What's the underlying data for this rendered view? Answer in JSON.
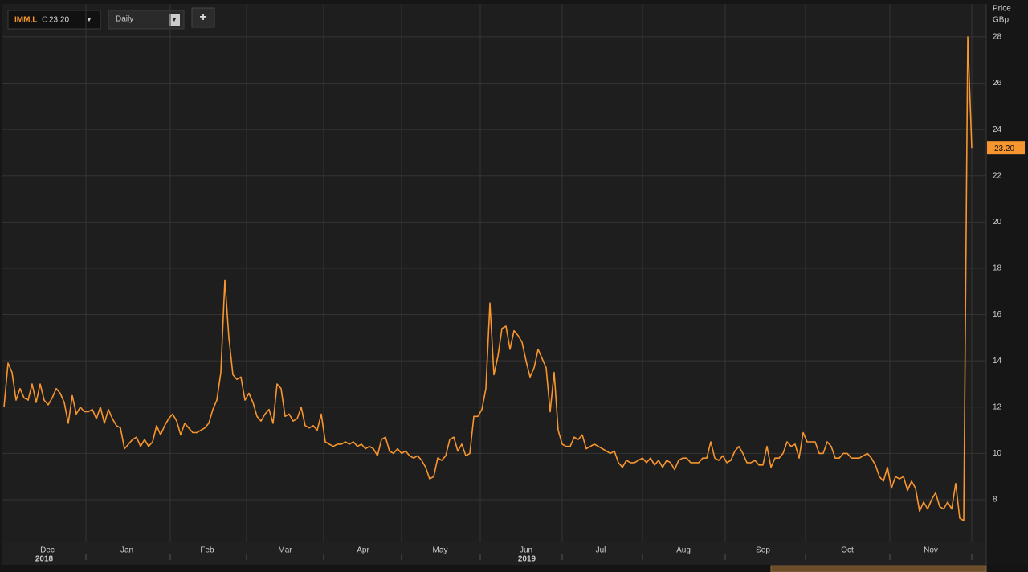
{
  "header": {
    "symbol": "IMM.L",
    "close_prefix": "C",
    "close": "23.20",
    "interval": "Daily",
    "add": "+"
  },
  "chart_data": {
    "type": "line",
    "y_axis_title": [
      "Price",
      "GBp"
    ],
    "series": [
      {
        "name": "IMM.L",
        "color": "#f7952e",
        "values": [
          12.0,
          13.9,
          13.5,
          12.3,
          12.8,
          12.4,
          12.3,
          13.0,
          12.2,
          13.0,
          12.3,
          12.1,
          12.4,
          12.8,
          12.6,
          12.2,
          11.3,
          12.5,
          11.7,
          12.0,
          11.8,
          11.8,
          11.9,
          11.5,
          12.0,
          11.3,
          11.9,
          11.5,
          11.2,
          11.1,
          10.2,
          10.4,
          10.6,
          10.7,
          10.3,
          10.6,
          10.3,
          10.5,
          11.2,
          10.8,
          11.2,
          11.5,
          11.7,
          11.4,
          10.8,
          11.3,
          11.1,
          10.9,
          10.9,
          11.0,
          11.1,
          11.3,
          11.9,
          12.3,
          13.5,
          17.5,
          15.0,
          13.4,
          13.2,
          13.3,
          12.3,
          12.6,
          12.2,
          11.6,
          11.4,
          11.7,
          11.9,
          11.3,
          13.0,
          12.8,
          11.6,
          11.7,
          11.4,
          11.5,
          12.0,
          11.2,
          11.1,
          11.2,
          11.0,
          11.7,
          10.5,
          10.4,
          10.3,
          10.4,
          10.4,
          10.5,
          10.4,
          10.5,
          10.3,
          10.4,
          10.2,
          10.3,
          10.2,
          9.9,
          10.6,
          10.7,
          10.1,
          10.0,
          10.2,
          10.0,
          10.1,
          9.9,
          9.8,
          9.9,
          9.7,
          9.4,
          8.9,
          9.0,
          9.8,
          9.7,
          9.9,
          10.6,
          10.7,
          10.1,
          10.4,
          9.9,
          10.0,
          11.6,
          11.6,
          11.9,
          12.8,
          16.5,
          13.4,
          14.2,
          15.4,
          15.5,
          14.5,
          15.3,
          15.1,
          14.8,
          14.0,
          13.3,
          13.7,
          14.5,
          14.1,
          13.7,
          11.8,
          13.5,
          11.0,
          10.4,
          10.3,
          10.3,
          10.7,
          10.6,
          10.8,
          10.2,
          10.3,
          10.4,
          10.3,
          10.2,
          10.1,
          10.0,
          10.1,
          9.6,
          9.4,
          9.7,
          9.6,
          9.6,
          9.7,
          9.8,
          9.6,
          9.8,
          9.5,
          9.7,
          9.4,
          9.7,
          9.6,
          9.3,
          9.7,
          9.8,
          9.8,
          9.6,
          9.6,
          9.6,
          9.8,
          9.8,
          10.5,
          9.8,
          9.7,
          9.9,
          9.6,
          9.7,
          10.1,
          10.3,
          10.0,
          9.6,
          9.6,
          9.7,
          9.5,
          9.5,
          10.3,
          9.4,
          9.8,
          9.8,
          10.0,
          10.5,
          10.3,
          10.4,
          9.8,
          10.9,
          10.5,
          10.5,
          10.5,
          10.0,
          10.0,
          10.5,
          10.3,
          9.8,
          9.8,
          10.0,
          10.0,
          9.8,
          9.8,
          9.8,
          9.9,
          10.0,
          9.8,
          9.5,
          9.0,
          8.8,
          9.4,
          8.5,
          9.0,
          8.9,
          9.0,
          8.4,
          8.8,
          8.5,
          7.5,
          7.9,
          7.6,
          8.0,
          8.3,
          7.7,
          7.6,
          7.9,
          7.6,
          8.7,
          7.2,
          7.1,
          28.0,
          23.2
        ]
      }
    ],
    "last_label": {
      "value": 23.2,
      "label": "23.20"
    },
    "xlim": [
      -0.4,
      244.6
    ],
    "xticks": [
      {
        "value": 10.8,
        "label": "Dec"
      },
      {
        "value": 30.6,
        "label": "Jan"
      },
      {
        "value": 50.6,
        "label": "Feb"
      },
      {
        "value": 70,
        "label": "Mar"
      },
      {
        "value": 89.4,
        "label": "Apr"
      },
      {
        "value": 108.6,
        "label": "May"
      },
      {
        "value": 130,
        "label": "Jun"
      },
      {
        "value": 148.6,
        "label": "Jul"
      },
      {
        "value": 169.2,
        "label": "Aug"
      },
      {
        "value": 189,
        "label": "Sep"
      },
      {
        "value": 210,
        "label": "Oct"
      },
      {
        "value": 230.8,
        "label": "Nov"
      }
    ],
    "year_ticks": [
      {
        "value": 10,
        "label": "2018"
      },
      {
        "value": 130.2,
        "label": "2019"
      }
    ],
    "xgrid_ticks": [
      20.4,
      41.4,
      60.4,
      79.6,
      99,
      118.6,
      139,
      159,
      179.6,
      199.6,
      220.6,
      241
    ],
    "ylim": [
      6.16,
      29.42
    ],
    "yticks": [
      8,
      10,
      12,
      14,
      16,
      18,
      20,
      22,
      24,
      26,
      28
    ],
    "grid": true
  }
}
